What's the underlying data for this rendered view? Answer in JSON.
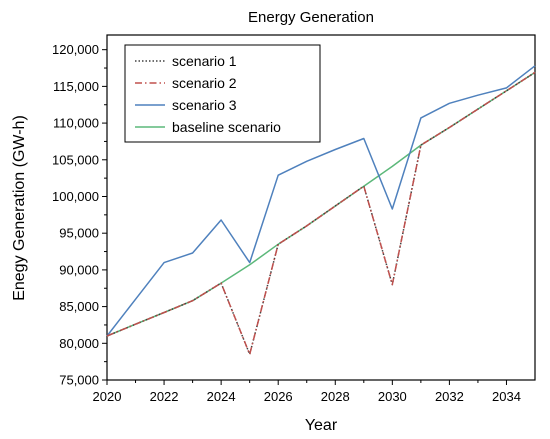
{
  "chart_data": {
    "type": "line",
    "title": "Energy Generation",
    "xlabel": "Year",
    "ylabel": "Enegy Generation (GW-h)",
    "xlim": [
      2020,
      2035
    ],
    "ylim": [
      75000,
      122000
    ],
    "x_ticks": [
      2020,
      2022,
      2024,
      2026,
      2028,
      2030,
      2032,
      2034
    ],
    "x_tick_labels": [
      "2020",
      "2022",
      "2024",
      "2026",
      "2028",
      "2030",
      "2032",
      "2034"
    ],
    "y_ticks": [
      75000,
      80000,
      85000,
      90000,
      95000,
      100000,
      105000,
      110000,
      115000,
      120000
    ],
    "y_tick_labels": [
      "75,000",
      "80,000",
      "85,000",
      "90,000",
      "95,000",
      "100,000",
      "105,000",
      "110,000",
      "115,000",
      "120,000"
    ],
    "grid": false,
    "legend_position": "top-left",
    "x": [
      2020,
      2021,
      2022,
      2023,
      2024,
      2025,
      2026,
      2027,
      2028,
      2029,
      2030,
      2031,
      2032,
      2033,
      2034,
      2035
    ],
    "series": [
      {
        "name": "scenario 1",
        "color": "#404040",
        "dash": "dotted",
        "values": [
          81000,
          82600,
          84200,
          85800,
          88200,
          78500,
          93500,
          96000,
          98700,
          101400,
          88000,
          107000,
          109400,
          111900,
          114400,
          116900
        ]
      },
      {
        "name": "scenario 2",
        "color": "#c0504d",
        "dash": "dashdot",
        "values": [
          81000,
          82600,
          84200,
          85800,
          88200,
          78500,
          93500,
          96000,
          98700,
          101400,
          88000,
          107000,
          109400,
          111900,
          114400,
          116900
        ]
      },
      {
        "name": "scenario 3",
        "color": "#4f81bd",
        "dash": "solid",
        "values": [
          81000,
          86000,
          91000,
          92300,
          96800,
          91000,
          102900,
          104800,
          106400,
          107900,
          98300,
          110700,
          112700,
          113800,
          114800,
          117800
        ]
      },
      {
        "name": "baseline scenario",
        "color": "#5cb87a",
        "dash": "solid",
        "values": [
          81000,
          82600,
          84200,
          85800,
          88200,
          90700,
          93500,
          96000,
          98700,
          101400,
          104100,
          107000,
          109400,
          111900,
          114400,
          116900
        ]
      }
    ]
  }
}
